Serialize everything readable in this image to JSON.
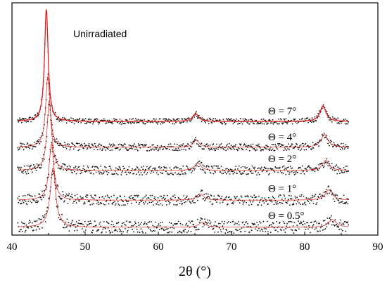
{
  "chart_data": {
    "type": "line",
    "title": "",
    "annotation": "Unirradiated",
    "xlabel": "2θ (°)",
    "ylabel": "",
    "xlim": [
      40,
      90
    ],
    "x_ticks": [
      40,
      50,
      60,
      70,
      80,
      90
    ],
    "x_tick_labels": [
      "40",
      "50",
      "60",
      "70",
      "80",
      "90"
    ],
    "y_ticks_visible": false,
    "grid": false,
    "colors": {
      "fit": "#e0201f",
      "data": "#1a0d0d",
      "axis": "#000000"
    },
    "series": [
      {
        "name": "Θ = 7°",
        "baseline": 0.86,
        "peaks": [
          {
            "x": 44.7,
            "height": 0.87,
            "width": 0.6
          },
          {
            "x": 65.1,
            "height": 0.06,
            "width": 1.0
          },
          {
            "x": 82.5,
            "height": 0.12,
            "width": 1.0
          }
        ]
      },
      {
        "name": "Θ = 4°",
        "baseline": 0.66,
        "peaks": [
          {
            "x": 44.9,
            "height": 0.55,
            "width": 0.7
          },
          {
            "x": 65.2,
            "height": 0.055,
            "width": 1.0
          },
          {
            "x": 82.7,
            "height": 0.1,
            "width": 1.1
          }
        ]
      },
      {
        "name": "Θ = 2°",
        "baseline": 0.48,
        "peaks": [
          {
            "x": 45.1,
            "height": 0.54,
            "width": 0.75
          },
          {
            "x": 65.4,
            "height": 0.06,
            "width": 1.0
          },
          {
            "x": 82.9,
            "height": 0.08,
            "width": 1.1
          }
        ]
      },
      {
        "name": "Θ = 1°",
        "baseline": 0.25,
        "peaks": [
          {
            "x": 45.4,
            "height": 0.44,
            "width": 0.8
          },
          {
            "x": 65.7,
            "height": 0.05,
            "width": 1.1
          },
          {
            "x": 83.3,
            "height": 0.08,
            "width": 1.2
          }
        ]
      },
      {
        "name": "Θ = 0.5°",
        "baseline": 0.04,
        "peaks": [
          {
            "x": 45.6,
            "height": 0.46,
            "width": 0.9
          },
          {
            "x": 66.0,
            "height": 0.04,
            "width": 1.1
          },
          {
            "x": 83.8,
            "height": 0.06,
            "width": 1.3
          }
        ]
      }
    ],
    "x_data_range": [
      40,
      86
    ]
  }
}
